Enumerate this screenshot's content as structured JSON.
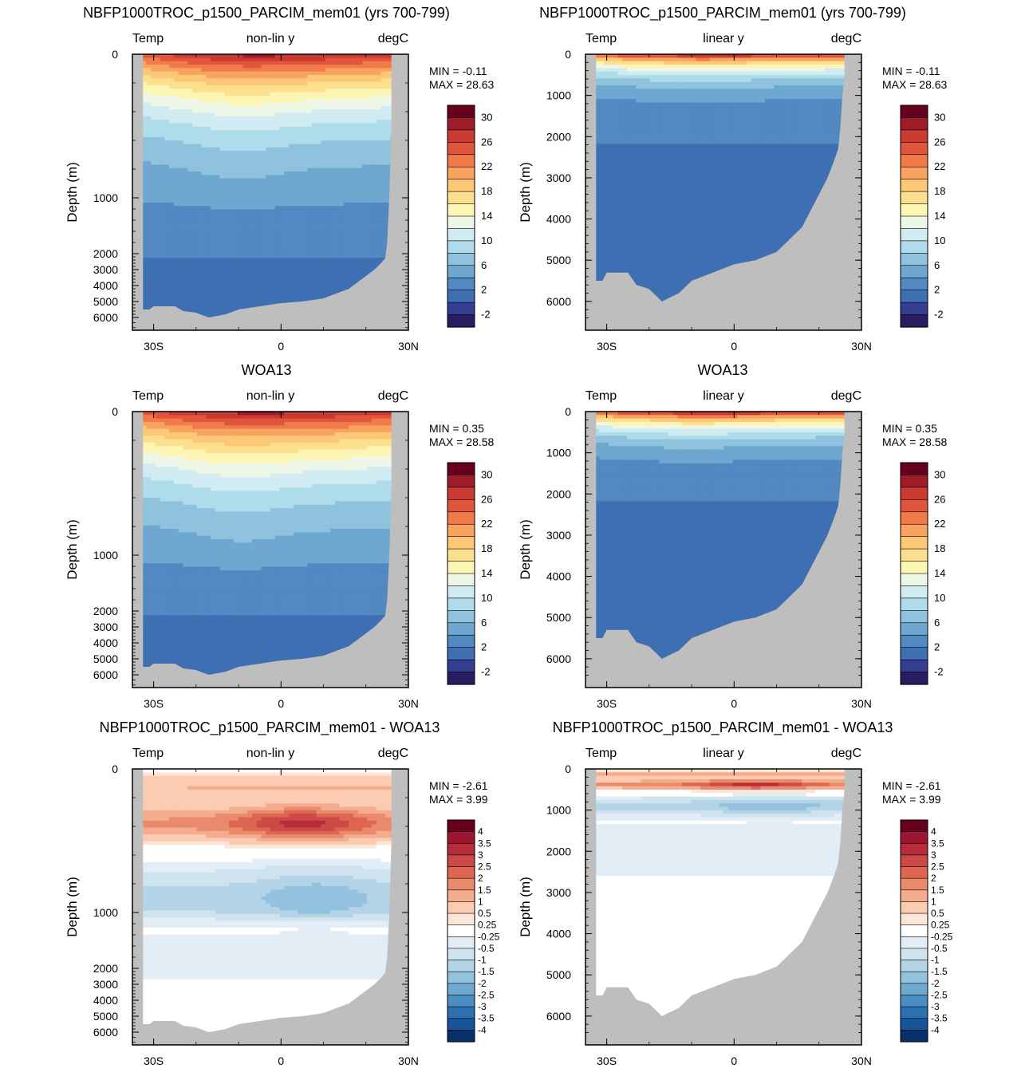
{
  "figure": {
    "type": "contour-sections",
    "rows": [
      {
        "title": "NBFP1000TROC_p1500_PARCIM_mem01 (yrs 700-799)",
        "kind": "full",
        "min": "MIN =  -0.11",
        "max": "MAX =  28.63"
      },
      {
        "title": "WOA13",
        "kind": "full",
        "min": "MIN =   0.35",
        "max": "MAX =  28.58"
      },
      {
        "title": "NBFP1000TROC_p1500_PARCIM_mem01 - WOA13",
        "kind": "diff",
        "min": "MIN =  -2.61",
        "max": "MAX =   3.99"
      }
    ],
    "columns": [
      {
        "scale": "non-lin y",
        "depth_ticks": [
          "0",
          "1000",
          "2000",
          "3000",
          "4000",
          "5000",
          "6000"
        ]
      },
      {
        "scale": "linear y",
        "depth_ticks": [
          "0",
          "1000",
          "2000",
          "3000",
          "4000",
          "5000",
          "6000"
        ]
      }
    ],
    "variable_label": "Temp",
    "units_label": "degC",
    "ylabel": "Depth (m)",
    "x_ticks": [
      "30S",
      "0",
      "30N"
    ],
    "colorbars": {
      "full": {
        "labels": [
          "30",
          "26",
          "22",
          "18",
          "14",
          "10",
          "6",
          "2",
          "-2"
        ],
        "colors": [
          "#67001f",
          "#9e1b2a",
          "#c83a32",
          "#e0553b",
          "#f07a48",
          "#f8a35f",
          "#fcc777",
          "#fde08d",
          "#fdf5b4",
          "#eef7e6",
          "#d0ecf2",
          "#aedceb",
          "#8fc3dd",
          "#6ea8d0",
          "#5289c2",
          "#3f6fb3",
          "#333e90",
          "#2b1b62"
        ]
      },
      "diff": {
        "labels": [
          "4",
          "3.5",
          "3",
          "2.5",
          "2",
          "1.5",
          "1",
          "0.5",
          "0.25",
          "-0.25",
          "-0.5",
          "-1",
          "-1.5",
          "-2",
          "-2.5",
          "-3",
          "-3.5",
          "-4"
        ],
        "colors": [
          "#67001f",
          "#9e1530",
          "#b82b3a",
          "#cc4a45",
          "#dc6651",
          "#ea8a6d",
          "#f4ab8e",
          "#fbcbb2",
          "#fde6d8",
          "#ffffff",
          "#e2edf5",
          "#cfe3ef",
          "#b3d4e7",
          "#93c2df",
          "#6fa9d2",
          "#4a8ec4",
          "#2c70b0",
          "#17549a",
          "#08306b"
        ]
      }
    },
    "land_color": "#bebebe"
  },
  "chart_data": [
    {
      "type": "heatmap",
      "title": "NBFP1000TROC_p1500_PARCIM_mem01 (yrs 700-799)",
      "variable": "Temp",
      "units": "degC",
      "y_scale": "non-lin y",
      "xlabel": "",
      "ylabel": "Depth (m)",
      "xlim": [
        -35,
        30
      ],
      "ylim": [
        6500,
        0
      ],
      "x_ticks": [
        "30S",
        "0",
        "30N"
      ],
      "y_ticks": [
        0,
        1000,
        2000,
        3000,
        4000,
        5000,
        6000
      ],
      "min": -0.11,
      "max": 28.63
    },
    {
      "type": "heatmap",
      "title": "NBFP1000TROC_p1500_PARCIM_mem01 (yrs 700-799)",
      "variable": "Temp",
      "units": "degC",
      "y_scale": "linear y",
      "xlabel": "",
      "ylabel": "Depth (m)",
      "xlim": [
        -35,
        30
      ],
      "ylim": [
        6500,
        0
      ],
      "x_ticks": [
        "30S",
        "0",
        "30N"
      ],
      "y_ticks": [
        0,
        1000,
        2000,
        3000,
        4000,
        5000,
        6000
      ],
      "min": -0.11,
      "max": 28.63
    },
    {
      "type": "heatmap",
      "title": "WOA13",
      "variable": "Temp",
      "units": "degC",
      "y_scale": "non-lin y",
      "xlabel": "",
      "ylabel": "Depth (m)",
      "xlim": [
        -35,
        30
      ],
      "ylim": [
        6500,
        0
      ],
      "x_ticks": [
        "30S",
        "0",
        "30N"
      ],
      "y_ticks": [
        0,
        1000,
        2000,
        3000,
        4000,
        5000,
        6000
      ],
      "min": 0.35,
      "max": 28.58
    },
    {
      "type": "heatmap",
      "title": "WOA13",
      "variable": "Temp",
      "units": "degC",
      "y_scale": "linear y",
      "xlabel": "",
      "ylabel": "Depth (m)",
      "xlim": [
        -35,
        30
      ],
      "ylim": [
        6500,
        0
      ],
      "x_ticks": [
        "30S",
        "0",
        "30N"
      ],
      "y_ticks": [
        0,
        1000,
        2000,
        3000,
        4000,
        5000,
        6000
      ],
      "min": 0.35,
      "max": 28.58
    },
    {
      "type": "heatmap",
      "title": "NBFP1000TROC_p1500_PARCIM_mem01 - WOA13",
      "variable": "Temp",
      "units": "degC",
      "y_scale": "non-lin y",
      "xlabel": "",
      "ylabel": "Depth (m)",
      "xlim": [
        -35,
        30
      ],
      "ylim": [
        6500,
        0
      ],
      "x_ticks": [
        "30S",
        "0",
        "30N"
      ],
      "y_ticks": [
        0,
        1000,
        2000,
        3000,
        4000,
        5000,
        6000
      ],
      "min": -2.61,
      "max": 3.99
    },
    {
      "type": "heatmap",
      "title": "NBFP1000TROC_p1500_PARCIM_mem01 - WOA13",
      "variable": "Temp",
      "units": "degC",
      "y_scale": "linear y",
      "xlabel": "",
      "ylabel": "Depth (m)",
      "xlim": [
        -35,
        30
      ],
      "ylim": [
        6500,
        0
      ],
      "x_ticks": [
        "30S",
        "0",
        "30N"
      ],
      "y_ticks": [
        0,
        1000,
        2000,
        3000,
        4000,
        5000,
        6000
      ],
      "min": -2.61,
      "max": 3.99
    }
  ]
}
